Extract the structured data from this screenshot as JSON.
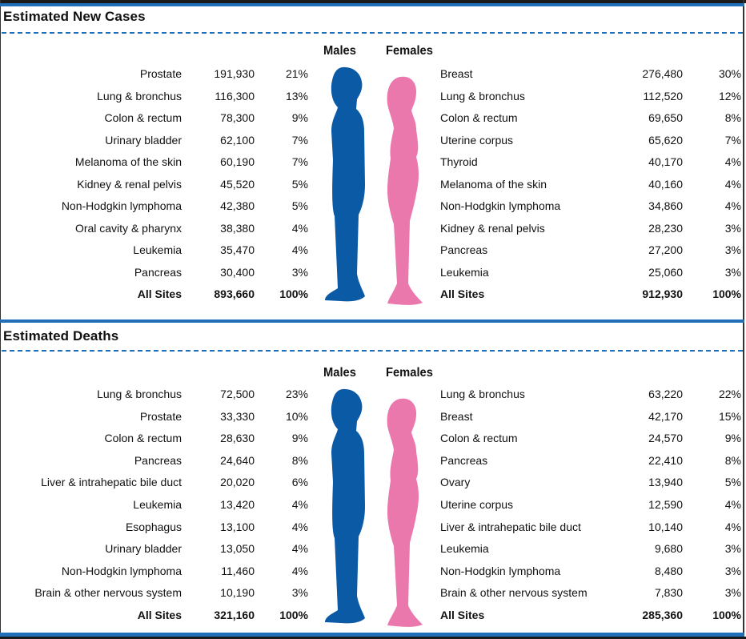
{
  "colors": {
    "male": "#0b5aa6",
    "female": "#ea78ad",
    "accent": "#1f6fb8"
  },
  "sections": [
    {
      "title": "Estimated New Cases",
      "males_label": "Males",
      "females_label": "Females",
      "males": [
        {
          "site": "Prostate",
          "count": "191,930",
          "pct": "21%"
        },
        {
          "site": "Lung & bronchus",
          "count": "116,300",
          "pct": "13%"
        },
        {
          "site": "Colon & rectum",
          "count": "78,300",
          "pct": "9%"
        },
        {
          "site": "Urinary bladder",
          "count": "62,100",
          "pct": "7%"
        },
        {
          "site": "Melanoma of the skin",
          "count": "60,190",
          "pct": "7%"
        },
        {
          "site": "Kidney & renal pelvis",
          "count": "45,520",
          "pct": "5%"
        },
        {
          "site": "Non-Hodgkin lymphoma",
          "count": "42,380",
          "pct": "5%"
        },
        {
          "site": "Oral cavity & pharynx",
          "count": "38,380",
          "pct": "4%"
        },
        {
          "site": "Leukemia",
          "count": "35,470",
          "pct": "4%"
        },
        {
          "site": "Pancreas",
          "count": "30,400",
          "pct": "3%"
        }
      ],
      "males_total": {
        "site": "All Sites",
        "count": "893,660",
        "pct": "100%"
      },
      "females": [
        {
          "site": "Breast",
          "count": "276,480",
          "pct": "30%"
        },
        {
          "site": "Lung & bronchus",
          "count": "112,520",
          "pct": "12%"
        },
        {
          "site": "Colon & rectum",
          "count": "69,650",
          "pct": "8%"
        },
        {
          "site": "Uterine corpus",
          "count": "65,620",
          "pct": "7%"
        },
        {
          "site": "Thyroid",
          "count": "40,170",
          "pct": "4%"
        },
        {
          "site": "Melanoma of the skin",
          "count": "40,160",
          "pct": "4%"
        },
        {
          "site": "Non-Hodgkin lymphoma",
          "count": "34,860",
          "pct": "4%"
        },
        {
          "site": "Kidney & renal pelvis",
          "count": "28,230",
          "pct": "3%"
        },
        {
          "site": "Pancreas",
          "count": "27,200",
          "pct": "3%"
        },
        {
          "site": "Leukemia",
          "count": "25,060",
          "pct": "3%"
        }
      ],
      "females_total": {
        "site": "All Sites",
        "count": "912,930",
        "pct": "100%"
      }
    },
    {
      "title": "Estimated Deaths",
      "males_label": "Males",
      "females_label": "Females",
      "males": [
        {
          "site": "Lung & bronchus",
          "count": "72,500",
          "pct": "23%"
        },
        {
          "site": "Prostate",
          "count": "33,330",
          "pct": "10%"
        },
        {
          "site": "Colon & rectum",
          "count": "28,630",
          "pct": "9%"
        },
        {
          "site": "Pancreas",
          "count": "24,640",
          "pct": "8%"
        },
        {
          "site": "Liver & intrahepatic bile duct",
          "count": "20,020",
          "pct": "6%"
        },
        {
          "site": "Leukemia",
          "count": "13,420",
          "pct": "4%"
        },
        {
          "site": "Esophagus",
          "count": "13,100",
          "pct": "4%"
        },
        {
          "site": "Urinary bladder",
          "count": "13,050",
          "pct": "4%"
        },
        {
          "site": "Non-Hodgkin lymphoma",
          "count": "11,460",
          "pct": "4%"
        },
        {
          "site": "Brain & other nervous system",
          "count": "10,190",
          "pct": "3%"
        }
      ],
      "males_total": {
        "site": "All Sites",
        "count": "321,160",
        "pct": "100%"
      },
      "females": [
        {
          "site": "Lung & bronchus",
          "count": "63,220",
          "pct": "22%"
        },
        {
          "site": "Breast",
          "count": "42,170",
          "pct": "15%"
        },
        {
          "site": "Colon & rectum",
          "count": "24,570",
          "pct": "9%"
        },
        {
          "site": "Pancreas",
          "count": "22,410",
          "pct": "8%"
        },
        {
          "site": "Ovary",
          "count": "13,940",
          "pct": "5%"
        },
        {
          "site": "Uterine corpus",
          "count": "12,590",
          "pct": "4%"
        },
        {
          "site": "Liver & intrahepatic bile duct",
          "count": "10,140",
          "pct": "4%"
        },
        {
          "site": "Leukemia",
          "count": "9,680",
          "pct": "3%"
        },
        {
          "site": "Non-Hodgkin lymphoma",
          "count": "8,480",
          "pct": "3%"
        },
        {
          "site": "Brain & other nervous system",
          "count": "7,830",
          "pct": "3%"
        }
      ],
      "females_total": {
        "site": "All Sites",
        "count": "285,360",
        "pct": "100%"
      }
    }
  ]
}
